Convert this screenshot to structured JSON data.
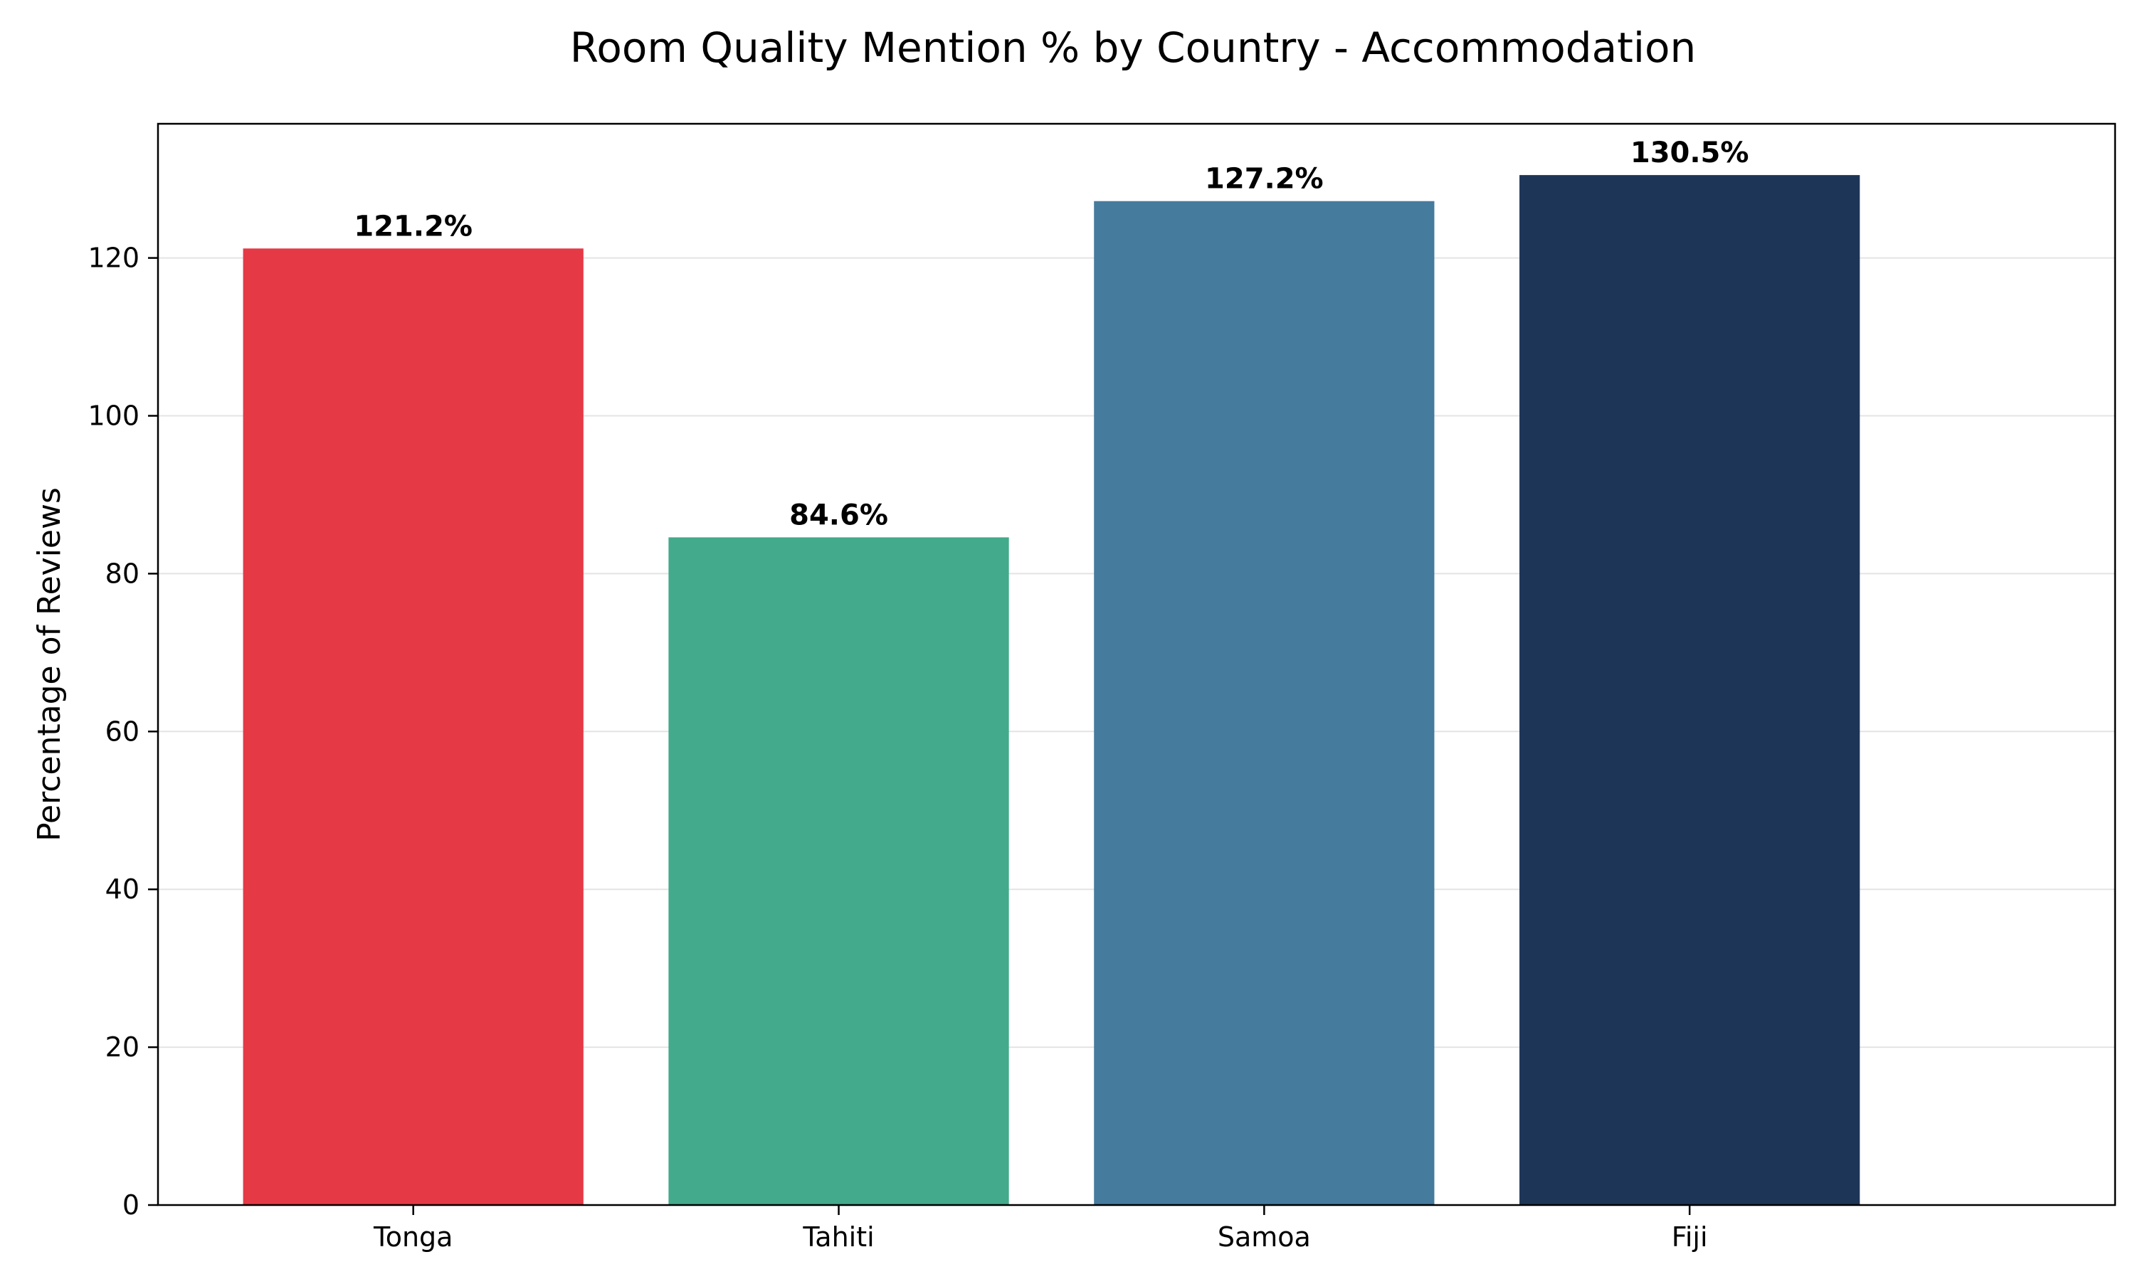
{
  "chart_data": {
    "type": "bar",
    "title": "Room Quality Mention % by Country - Accommodation",
    "xlabel": "",
    "ylabel": "Percentage of Reviews",
    "categories": [
      "Tonga",
      "Tahiti",
      "Samoa",
      "Fiji"
    ],
    "values": [
      121.2,
      84.6,
      127.2,
      130.5
    ],
    "data_labels": [
      "121.2%",
      "84.6%",
      "127.2%",
      "130.5%"
    ],
    "colors": [
      "#e63946",
      "#43aa8b",
      "#457b9d",
      "#1d3557"
    ],
    "ylim": [
      0,
      137
    ],
    "yticks": [
      0,
      20,
      40,
      60,
      80,
      100,
      120
    ],
    "grid": "horizontal",
    "legend": "none"
  }
}
